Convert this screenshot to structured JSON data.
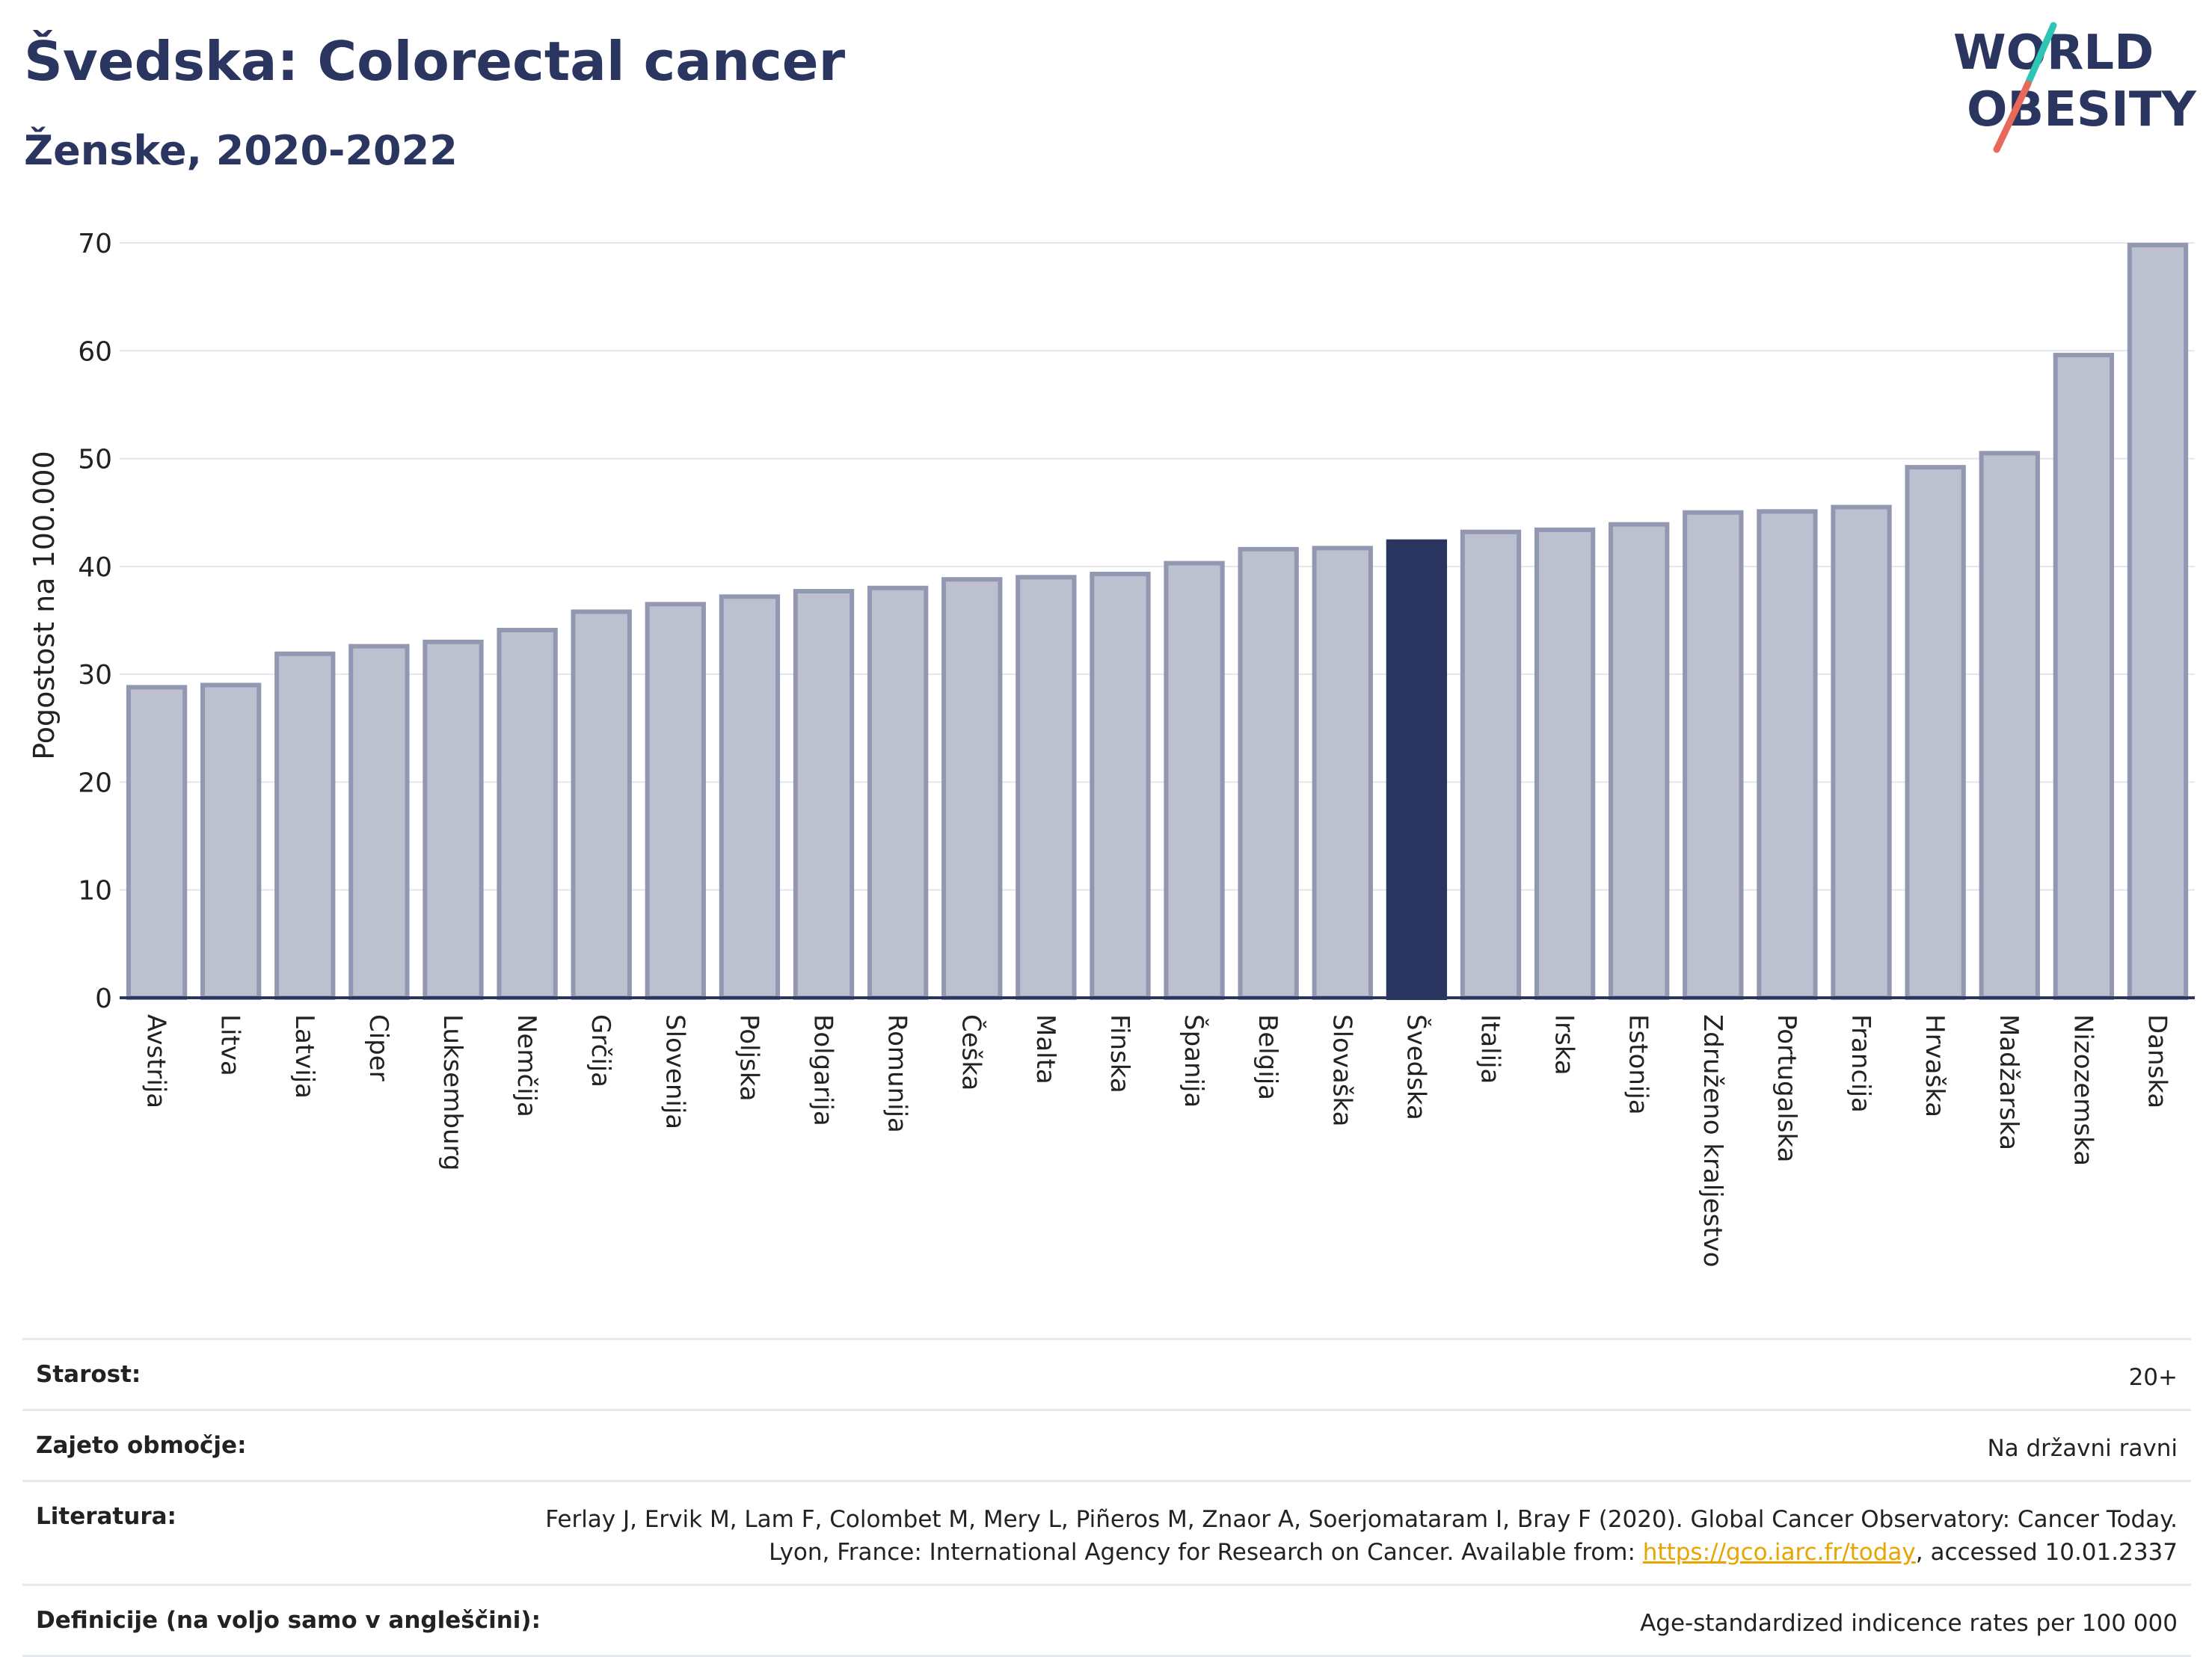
{
  "header": {
    "title": "Švedska: Colorectal cancer",
    "subtitle": "Ženske, 2020-2022",
    "logo_line1": "WORLD",
    "logo_line2": "OBESITY"
  },
  "chart_data": {
    "type": "bar",
    "categories": [
      "Avstrija",
      "Litva",
      "Latvija",
      "Ciper",
      "Luksemburg",
      "Nemčija",
      "Grčija",
      "Slovenija",
      "Poljska",
      "Bolgarija",
      "Romunija",
      "Češka",
      "Malta",
      "Finska",
      "Španija",
      "Belgija",
      "Slovaška",
      "Švedska",
      "Italija",
      "Irska",
      "Estonija",
      "Združeno kraljestvo",
      "Portugalska",
      "Francija",
      "Hrvaška",
      "Madžarska",
      "Nizozemska",
      "Danska"
    ],
    "values": [
      28.8,
      29.0,
      31.9,
      32.6,
      33.0,
      34.1,
      35.8,
      36.5,
      37.2,
      37.7,
      38.0,
      38.8,
      39.0,
      39.3,
      40.3,
      41.6,
      41.7,
      42.3,
      43.2,
      43.4,
      43.9,
      45.0,
      45.1,
      45.5,
      49.2,
      50.5,
      59.6,
      69.8
    ],
    "highlight": "Švedska",
    "ylabel": "Pogostost na 100.000",
    "ylim": [
      0,
      70
    ],
    "yticks": [
      0,
      10,
      20,
      30,
      40,
      50,
      60,
      70
    ],
    "grid": true,
    "colors": {
      "bar": "#bcc0cf",
      "bar_border": "#9298b1",
      "highlight": "#2a3560"
    }
  },
  "footer": {
    "age_label": "Starost:",
    "age_value": "20+",
    "coverage_label": "Zajeto območje:",
    "coverage_value": "Na državni ravni",
    "literature_label": "Literatura:",
    "literature_text": "Ferlay J, Ervik M, Lam F, Colombet M, Mery L, Piñeros M, Znaor A, Soerjomataram I, Bray F (2020). Global Cancer Observatory: Cancer Today. Lyon, France: International Agency for Research on Cancer. Available from: ",
    "literature_link": "https://gco.iarc.fr/today",
    "literature_suffix": ", accessed 10.01.2337",
    "definitions_label": "Definicije (na voljo samo v angleščini):",
    "definitions_value": "Age-standardized indicence rates per 100 000"
  }
}
